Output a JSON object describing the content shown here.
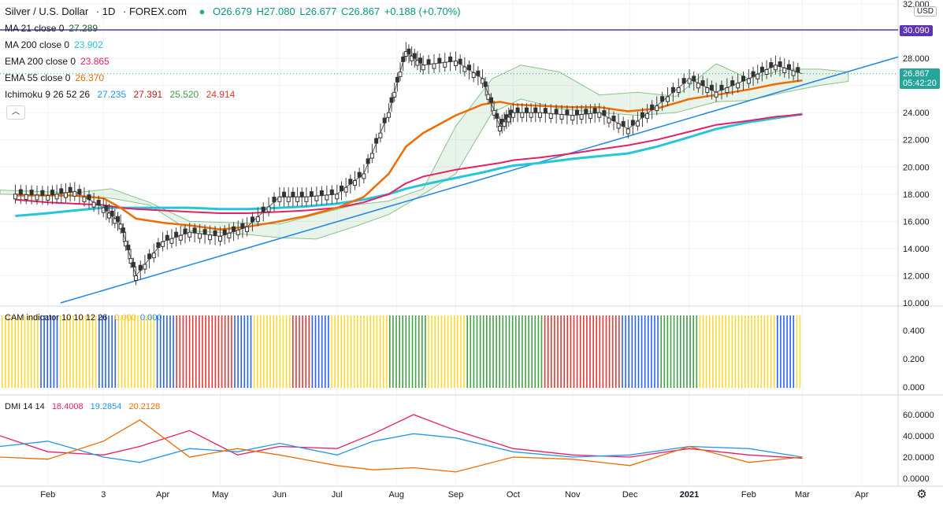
{
  "header": {
    "symbol": "Silver / U.S. Dollar",
    "interval": "1D",
    "exchange": "FOREX.com",
    "open": "O26.679",
    "high": "H27.080",
    "low": "L26.677",
    "close": "C26.867",
    "change": "+0.188 (+0.70%)",
    "currency": "USD"
  },
  "indicators": {
    "ma21": {
      "label": "MA 21 close 0",
      "value": "27.289",
      "color": "#1b5e20"
    },
    "ma200": {
      "label": "MA 200 close 0",
      "value": "23.902",
      "color": "#26c6da"
    },
    "ema200": {
      "label": "EMA 200 close 0",
      "value": "23.865",
      "color": "#e91e63"
    },
    "ema55": {
      "label": "EMA 55 close 0",
      "value": "26.370",
      "color": "#ef6c00"
    },
    "ichimoku": {
      "label": "Ichimoku 9 26 52 26",
      "values": [
        "27.235",
        "27.391",
        "25.520",
        "24.914"
      ],
      "colors": [
        "#2196f3",
        "#b71c1c",
        "#43a047",
        "#e53935"
      ]
    }
  },
  "price_axis": {
    "ticks": [
      "32.000",
      "30.090",
      "28.000",
      "26.867",
      "24.000",
      "22.000",
      "20.000",
      "18.000",
      "16.000",
      "14.000",
      "12.000",
      "10.000"
    ],
    "resistance_label": "30.090",
    "last_price_label": "26.867",
    "countdown": "05:42:20"
  },
  "time_axis": {
    "labels": [
      "Feb",
      "3",
      "Apr",
      "May",
      "Jun",
      "Jul",
      "Aug",
      "Sep",
      "Oct",
      "Nov",
      "Dec",
      "2021",
      "Feb",
      "Mar",
      "Apr"
    ]
  },
  "cam_pane": {
    "label": "CAM indicator 10 10 12 26",
    "value1": "0.000",
    "value2": "0.000",
    "ticks": [
      "0.400",
      "0.200",
      "0.000"
    ]
  },
  "dmi_pane": {
    "label": "DMI 14 14",
    "values": [
      "18.4008",
      "19.2854",
      "20.2128"
    ],
    "colors": [
      "#e91e63",
      "#2196f3",
      "#ef6c00"
    ],
    "ticks": [
      "60.0000",
      "40.0000",
      "20.0000",
      "0.0000"
    ]
  },
  "chart_data": {
    "type": "line",
    "title": "Silver / U.S. Dollar, 1D, FOREX.com",
    "ylim": [
      10,
      32
    ],
    "x": [
      "2020-01-15",
      "2020-02-01",
      "2020-02-15",
      "2020-03-01",
      "2020-03-10",
      "2020-03-18",
      "2020-04-01",
      "2020-04-15",
      "2020-05-01",
      "2020-05-15",
      "2020-06-01",
      "2020-06-15",
      "2020-07-01",
      "2020-07-15",
      "2020-07-28",
      "2020-08-06",
      "2020-08-15",
      "2020-09-01",
      "2020-09-15",
      "2020-09-24",
      "2020-10-01",
      "2020-10-15",
      "2020-11-01",
      "2020-11-15",
      "2020-11-30",
      "2020-12-15",
      "2021-01-01",
      "2021-01-15",
      "2021-02-01",
      "2021-02-15",
      "2021-03-01"
    ],
    "series": [
      {
        "name": "Silver close",
        "values": [
          18.0,
          17.9,
          18.2,
          17.0,
          15.8,
          12.0,
          14.5,
          15.2,
          14.9,
          15.6,
          17.8,
          17.8,
          18.0,
          19.5,
          24.0,
          28.5,
          27.5,
          27.8,
          26.5,
          23.0,
          24.0,
          24.0,
          23.8,
          24.0,
          22.8,
          24.5,
          26.5,
          25.5,
          26.5,
          27.5,
          26.867
        ]
      },
      {
        "name": "MA 200",
        "values": [
          16.4,
          16.6,
          16.8,
          17.0,
          17.0,
          17.0,
          17.0,
          17.0,
          16.9,
          16.9,
          17.0,
          17.1,
          17.3,
          17.6,
          18.0,
          18.4,
          18.7,
          19.2,
          19.6,
          19.9,
          20.1,
          20.3,
          20.6,
          20.8,
          21.0,
          21.5,
          22.2,
          22.8,
          23.3,
          23.6,
          23.902
        ]
      },
      {
        "name": "EMA 200",
        "values": [
          17.6,
          17.4,
          17.3,
          17.2,
          17.0,
          16.9,
          16.8,
          16.7,
          16.6,
          16.6,
          16.7,
          16.8,
          17.0,
          17.4,
          18.0,
          18.8,
          19.3,
          19.8,
          20.1,
          20.3,
          20.5,
          20.7,
          21.0,
          21.3,
          21.6,
          22.0,
          22.6,
          23.1,
          23.4,
          23.7,
          23.865
        ]
      },
      {
        "name": "EMA 55",
        "values": [
          17.9,
          17.9,
          17.9,
          17.7,
          17.0,
          16.2,
          15.9,
          15.7,
          15.4,
          15.6,
          16.0,
          16.4,
          17.0,
          17.8,
          19.5,
          21.5,
          22.5,
          23.8,
          24.6,
          24.8,
          24.6,
          24.5,
          24.4,
          24.4,
          24.1,
          24.3,
          25.0,
          25.3,
          25.7,
          26.1,
          26.37
        ]
      }
    ]
  }
}
